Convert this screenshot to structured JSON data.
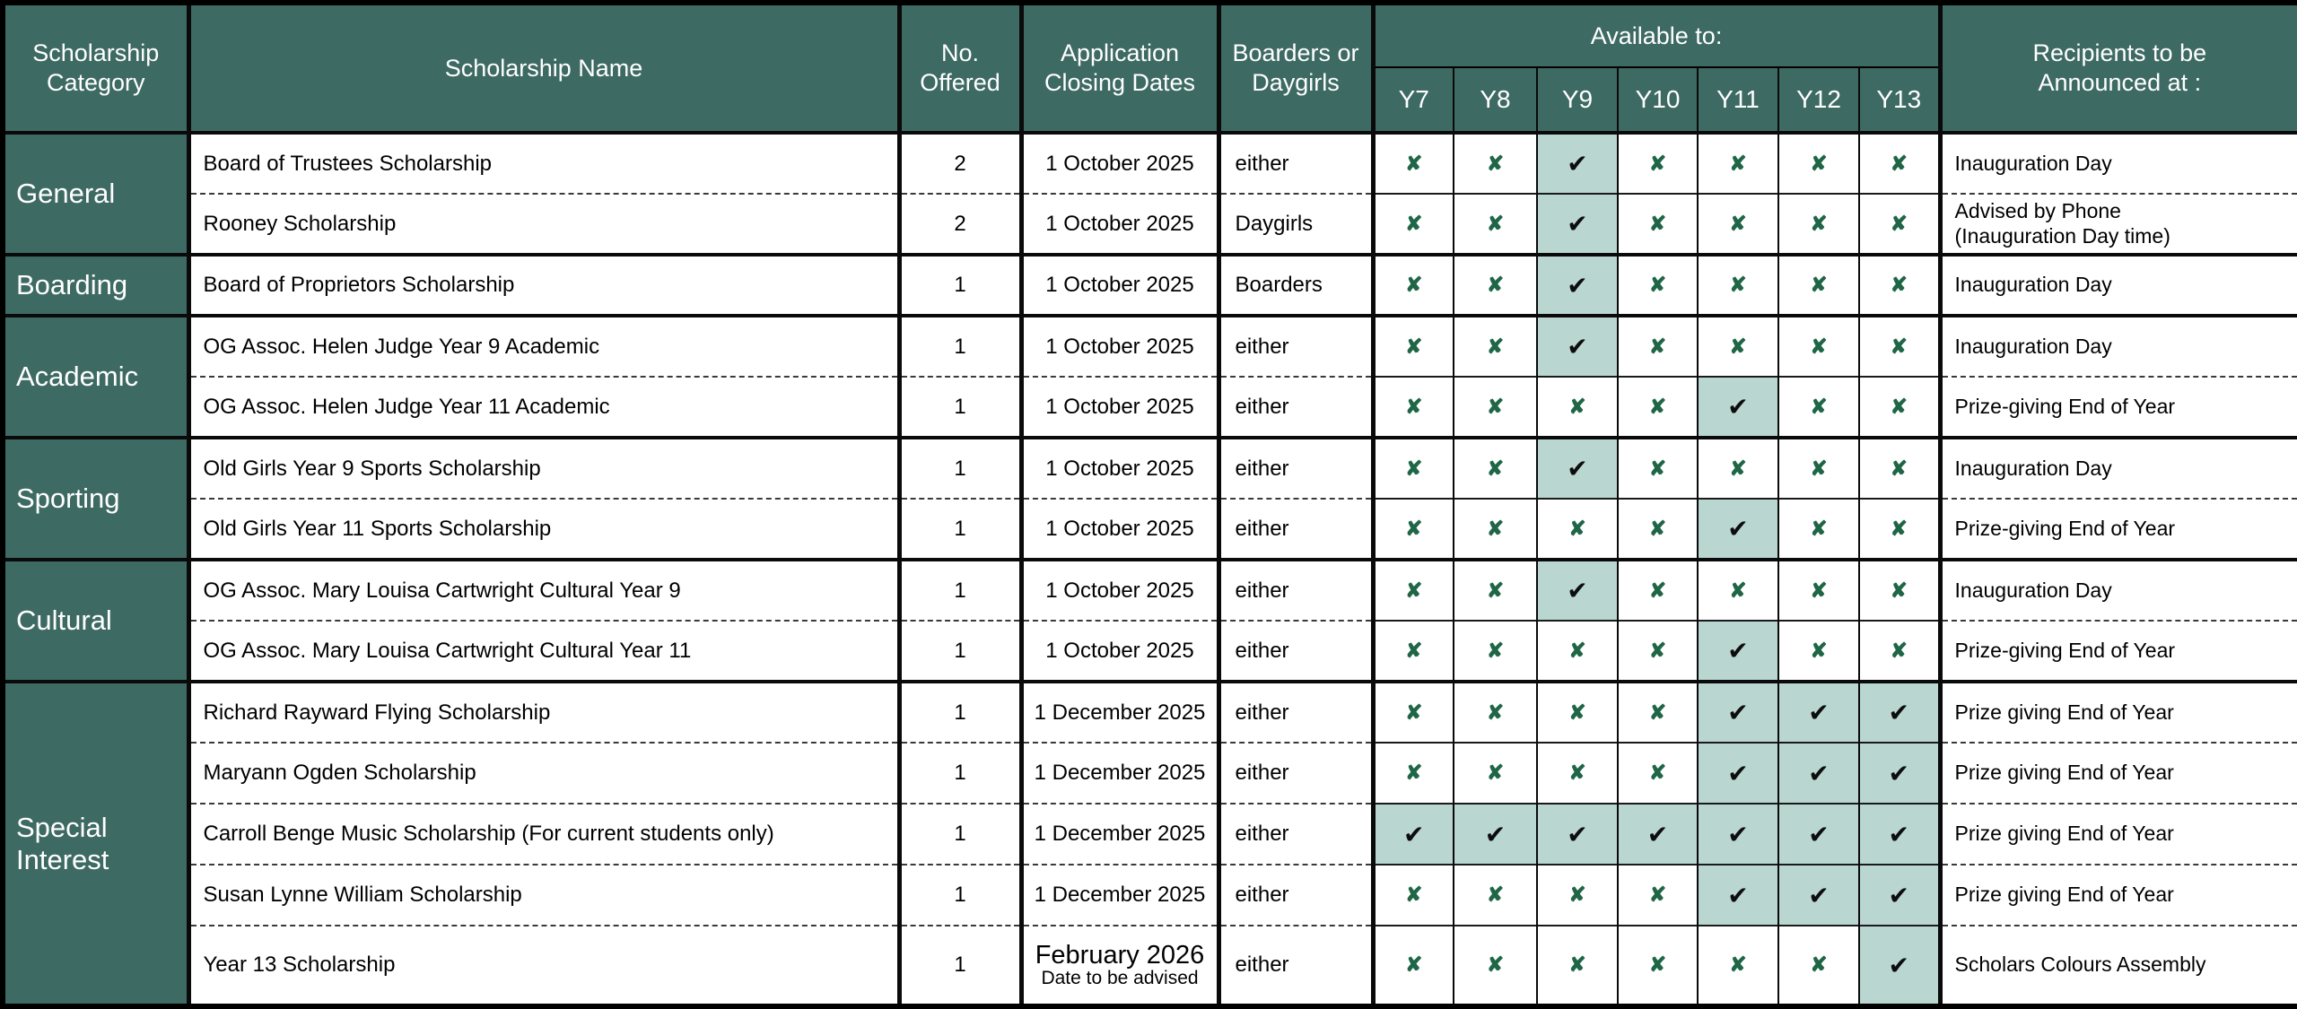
{
  "header": {
    "category": "Scholarship Category",
    "name": "Scholarship Name",
    "offered": "No. Offered",
    "closing": "Application Closing Dates",
    "boarders": "Boarders or Daygirls",
    "available_to": "Available to:",
    "years": [
      "Y7",
      "Y8",
      "Y9",
      "Y10",
      "Y11",
      "Y12",
      "Y13"
    ],
    "recipients_lines": [
      "Recipients to be",
      "Announced at :"
    ]
  },
  "glyphs": {
    "check": "✔",
    "cross": "✘"
  },
  "colors": {
    "header_teal": "#3e6a64",
    "highlight_teal": "#b9d6d1",
    "cross_green": "#1f6647",
    "check_black": "#0d0d0d"
  },
  "groups": [
    {
      "category": "General",
      "rows": [
        {
          "name": "Board of Trustees Scholarship",
          "offered": "2",
          "closing": "1 October 2025",
          "closing_sub": "",
          "boarders": "either",
          "years": [
            false,
            false,
            true,
            false,
            false,
            false,
            false
          ],
          "recipients": [
            "Inauguration Day"
          ]
        },
        {
          "name": "Rooney Scholarship",
          "offered": "2",
          "closing": "1 October 2025",
          "closing_sub": "",
          "boarders": "Daygirls",
          "years": [
            false,
            false,
            true,
            false,
            false,
            false,
            false
          ],
          "recipients": [
            "Advised by Phone",
            "(Inauguration Day time)"
          ]
        }
      ]
    },
    {
      "category": "Boarding",
      "rows": [
        {
          "name": "Board of Proprietors Scholarship",
          "offered": "1",
          "closing": "1 October 2025",
          "closing_sub": "",
          "boarders": "Boarders",
          "years": [
            false,
            false,
            true,
            false,
            false,
            false,
            false
          ],
          "recipients": [
            "Inauguration Day"
          ]
        }
      ]
    },
    {
      "category": "Academic",
      "rows": [
        {
          "name": "OG Assoc. Helen Judge Year 9 Academic",
          "offered": "1",
          "closing": "1 October 2025",
          "closing_sub": "",
          "boarders": "either",
          "years": [
            false,
            false,
            true,
            false,
            false,
            false,
            false
          ],
          "recipients": [
            "Inauguration Day"
          ]
        },
        {
          "name": "OG Assoc. Helen Judge Year 11 Academic",
          "offered": "1",
          "closing": "1 October 2025",
          "closing_sub": "",
          "boarders": "either",
          "years": [
            false,
            false,
            false,
            false,
            true,
            false,
            false
          ],
          "recipients": [
            "Prize-giving End of Year"
          ]
        }
      ]
    },
    {
      "category": "Sporting",
      "rows": [
        {
          "name": "Old Girls Year 9 Sports Scholarship",
          "offered": "1",
          "closing": "1 October 2025",
          "closing_sub": "",
          "boarders": "either",
          "years": [
            false,
            false,
            true,
            false,
            false,
            false,
            false
          ],
          "recipients": [
            "Inauguration Day"
          ]
        },
        {
          "name": "Old Girls Year 11 Sports Scholarship",
          "offered": "1",
          "closing": "1 October 2025",
          "closing_sub": "",
          "boarders": "either",
          "years": [
            false,
            false,
            false,
            false,
            true,
            false,
            false
          ],
          "recipients": [
            "Prize-giving End of Year"
          ]
        }
      ]
    },
    {
      "category": "Cultural",
      "rows": [
        {
          "name": "OG Assoc. Mary Louisa Cartwright Cultural Year 9",
          "offered": "1",
          "closing": "1 October 2025",
          "closing_sub": "",
          "boarders": "either",
          "years": [
            false,
            false,
            true,
            false,
            false,
            false,
            false
          ],
          "recipients": [
            "Inauguration Day"
          ]
        },
        {
          "name": "OG Assoc. Mary Louisa Cartwright Cultural Year 11",
          "offered": "1",
          "closing": "1 October 2025",
          "closing_sub": "",
          "boarders": "either",
          "years": [
            false,
            false,
            false,
            false,
            true,
            false,
            false
          ],
          "recipients": [
            "Prize-giving End of Year"
          ]
        }
      ]
    },
    {
      "category": "Special Interest",
      "rows": [
        {
          "name": "Richard Rayward Flying Scholarship",
          "offered": "1",
          "closing": "1 December 2025",
          "closing_sub": "",
          "boarders": "either",
          "years": [
            false,
            false,
            false,
            false,
            true,
            true,
            true
          ],
          "recipients": [
            "Prize giving End of Year"
          ]
        },
        {
          "name": "Maryann Ogden Scholarship",
          "offered": "1",
          "closing": "1 December 2025",
          "closing_sub": "",
          "boarders": "either",
          "years": [
            false,
            false,
            false,
            false,
            true,
            true,
            true
          ],
          "recipients": [
            "Prize giving End of Year"
          ]
        },
        {
          "name": "Carroll Benge Music Scholarship (For current students only)",
          "offered": "1",
          "closing": "1 December 2025",
          "closing_sub": "",
          "boarders": "either",
          "years": [
            true,
            true,
            true,
            true,
            true,
            true,
            true
          ],
          "recipients": [
            "Prize giving End of Year"
          ]
        },
        {
          "name": "Susan Lynne William Scholarship",
          "offered": "1",
          "closing": "1 December 2025",
          "closing_sub": "",
          "boarders": "either",
          "years": [
            false,
            false,
            false,
            false,
            true,
            true,
            true
          ],
          "recipients": [
            "Prize giving End of Year"
          ]
        },
        {
          "name": "Year 13 Scholarship",
          "offered": "1",
          "closing": "February 2026",
          "closing_sub": "Date to be advised",
          "boarders": "either",
          "years": [
            false,
            false,
            false,
            false,
            false,
            false,
            true
          ],
          "recipients": [
            "Scholars Colours Assembly"
          ]
        }
      ]
    }
  ]
}
